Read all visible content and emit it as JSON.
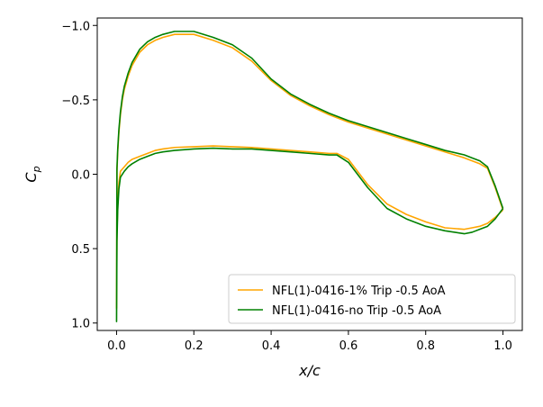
{
  "chart_data": {
    "type": "line",
    "title": "",
    "xlabel": "x/c",
    "ylabel_main": "C",
    "ylabel_sub": "p",
    "xlim": [
      -0.05,
      1.05
    ],
    "ylim": [
      1.05,
      -1.05
    ],
    "y_inverted": true,
    "grid": false,
    "legend_position": "lower-right",
    "xticks": [
      0.0,
      0.2,
      0.4,
      0.6,
      0.8,
      1.0
    ],
    "xtick_labels": [
      "0.0",
      "0.2",
      "0.4",
      "0.6",
      "0.8",
      "1.0"
    ],
    "yticks": [
      -1.0,
      -0.5,
      0.0,
      0.5,
      1.0
    ],
    "ytick_labels": [
      "−1.0",
      "−0.5",
      "0.0",
      "0.5",
      "1.0"
    ],
    "series": [
      {
        "name": "NFL(1)-0416-1% Trip -0.5 AoA",
        "color": "#FFA500",
        "x": [
          1.0,
          0.98,
          0.96,
          0.94,
          0.92,
          0.9,
          0.85,
          0.8,
          0.75,
          0.7,
          0.65,
          0.6,
          0.55,
          0.5,
          0.45,
          0.4,
          0.35,
          0.3,
          0.25,
          0.2,
          0.15,
          0.12,
          0.1,
          0.08,
          0.06,
          0.04,
          0.03,
          0.02,
          0.015,
          0.01,
          0.006,
          0.003,
          0.001,
          0.0,
          0.001,
          0.003,
          0.006,
          0.01,
          0.02,
          0.03,
          0.04,
          0.06,
          0.08,
          0.1,
          0.12,
          0.15,
          0.2,
          0.25,
          0.3,
          0.35,
          0.4,
          0.45,
          0.5,
          0.55,
          0.57,
          0.6,
          0.65,
          0.7,
          0.75,
          0.8,
          0.85,
          0.9,
          0.92,
          0.94,
          0.96,
          0.98,
          1.0
        ],
        "y": [
          0.24,
          0.09,
          -0.04,
          -0.07,
          -0.09,
          -0.11,
          -0.15,
          -0.19,
          -0.23,
          -0.27,
          -0.31,
          -0.35,
          -0.4,
          -0.46,
          -0.53,
          -0.63,
          -0.76,
          -0.85,
          -0.9,
          -0.94,
          -0.94,
          -0.92,
          -0.9,
          -0.87,
          -0.82,
          -0.73,
          -0.66,
          -0.57,
          -0.5,
          -0.4,
          -0.28,
          -0.15,
          -0.02,
          0.9,
          0.4,
          0.2,
          0.06,
          -0.02,
          -0.05,
          -0.08,
          -0.1,
          -0.12,
          -0.14,
          -0.16,
          -0.17,
          -0.18,
          -0.185,
          -0.19,
          -0.185,
          -0.18,
          -0.17,
          -0.16,
          -0.15,
          -0.14,
          -0.14,
          -0.1,
          0.07,
          0.2,
          0.27,
          0.32,
          0.36,
          0.37,
          0.36,
          0.35,
          0.33,
          0.29,
          0.24
        ]
      },
      {
        "name": "NFL(1)-0416-no Trip -0.5 AoA",
        "color": "#008000",
        "x": [
          1.0,
          0.98,
          0.96,
          0.94,
          0.92,
          0.9,
          0.85,
          0.8,
          0.75,
          0.7,
          0.65,
          0.6,
          0.55,
          0.5,
          0.45,
          0.4,
          0.35,
          0.3,
          0.25,
          0.2,
          0.15,
          0.12,
          0.1,
          0.08,
          0.06,
          0.04,
          0.03,
          0.02,
          0.015,
          0.01,
          0.006,
          0.003,
          0.001,
          0.0,
          0.001,
          0.003,
          0.006,
          0.01,
          0.02,
          0.03,
          0.04,
          0.06,
          0.08,
          0.1,
          0.12,
          0.15,
          0.2,
          0.25,
          0.3,
          0.35,
          0.4,
          0.45,
          0.5,
          0.55,
          0.57,
          0.6,
          0.65,
          0.7,
          0.75,
          0.8,
          0.85,
          0.9,
          0.92,
          0.94,
          0.96,
          0.98,
          1.0
        ],
        "y": [
          0.23,
          0.08,
          -0.05,
          -0.09,
          -0.11,
          -0.13,
          -0.16,
          -0.2,
          -0.24,
          -0.28,
          -0.32,
          -0.36,
          -0.41,
          -0.47,
          -0.54,
          -0.64,
          -0.78,
          -0.87,
          -0.92,
          -0.96,
          -0.96,
          -0.94,
          -0.92,
          -0.89,
          -0.84,
          -0.75,
          -0.68,
          -0.59,
          -0.52,
          -0.42,
          -0.3,
          -0.17,
          -0.04,
          0.99,
          0.45,
          0.24,
          0.1,
          0.02,
          -0.02,
          -0.05,
          -0.07,
          -0.1,
          -0.12,
          -0.14,
          -0.15,
          -0.16,
          -0.17,
          -0.175,
          -0.17,
          -0.17,
          -0.16,
          -0.15,
          -0.14,
          -0.13,
          -0.13,
          -0.08,
          0.09,
          0.23,
          0.3,
          0.35,
          0.38,
          0.4,
          0.39,
          0.37,
          0.35,
          0.3,
          0.23
        ]
      }
    ]
  }
}
